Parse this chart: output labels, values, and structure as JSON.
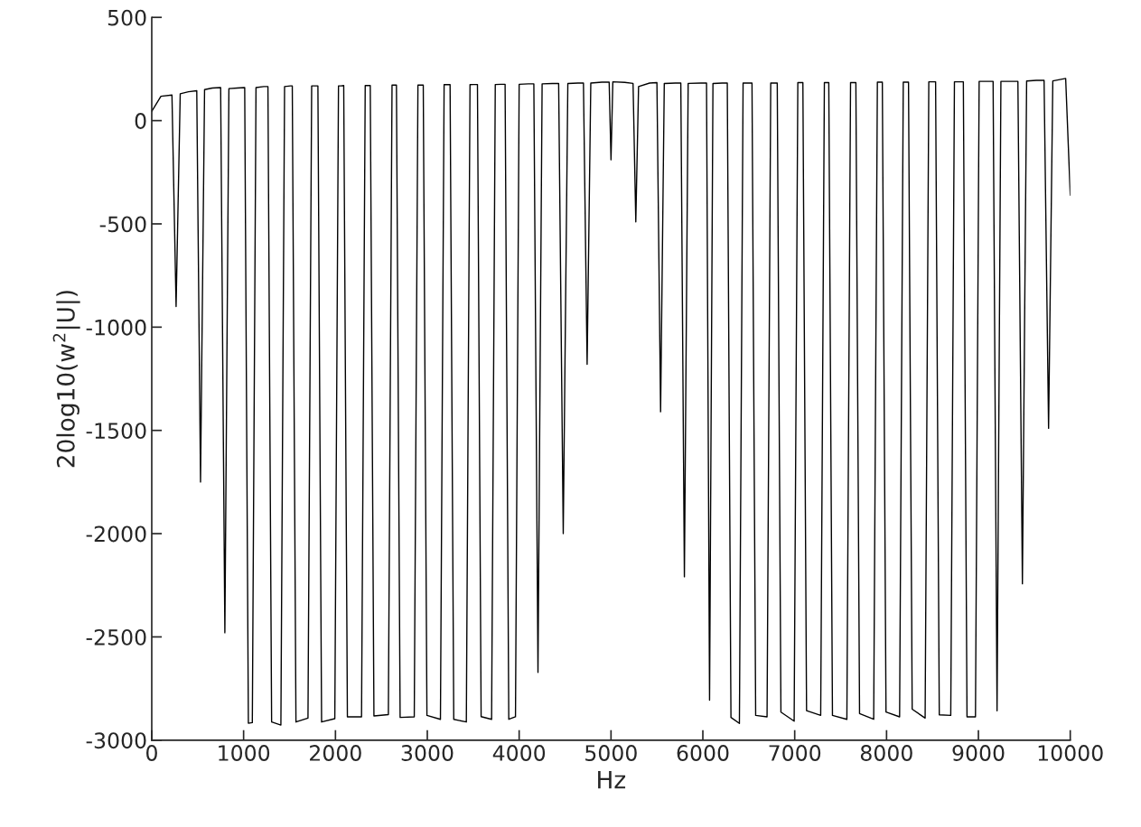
{
  "chart_data": {
    "type": "line",
    "xlabel": "Hz",
    "ylabel": "20log10(w$^{2}$|U|)",
    "xlim": [
      0,
      10000
    ],
    "xticks": [
      0,
      1000,
      2000,
      3000,
      4000,
      5000,
      6000,
      7000,
      8000,
      9000,
      10000
    ],
    "ylim": [
      -3000,
      500
    ],
    "yticks": [
      {
        "value": -3000,
        "label": "-3000"
      },
      {
        "value": -2500,
        "label": "-2500"
      },
      {
        "value": -2000,
        "label": "-2000"
      },
      {
        "value": -1500,
        "label": "-1500"
      },
      {
        "value": -1000,
        "label": "-1000"
      },
      {
        "value": -500,
        "label": "-500"
      },
      0,
      500
    ],
    "grid": false,
    "marker": "none",
    "line_style": "solid",
    "series": [
      {
        "color": "#000000",
        "x": [
          0,
          100,
          220,
          265,
          310,
          400,
          490,
          531,
          575,
          660,
          750,
          796,
          840,
          930,
          1012,
          1052,
          1095,
          1135,
          1220,
          1265,
          1305,
          1406,
          1446,
          1510,
          1530,
          1570,
          1701,
          1741,
          1775,
          1809,
          1849,
          1993,
          2033,
          2060,
          2090,
          2130,
          2284,
          2324,
          2350,
          2379,
          2419,
          2576,
          2616,
          2640,
          2664,
          2704,
          2858,
          2898,
          2930,
          2956,
          2996,
          3143,
          3183,
          3220,
          3248,
          3288,
          3425,
          3465,
          3500,
          3546,
          3586,
          3700,
          3740,
          3800,
          3847,
          3887,
          3960,
          4000,
          4100,
          4160,
          4205,
          4250,
          4360,
          4430,
          4480,
          4530,
          4640,
          4700,
          4740,
          4780,
          4900,
          4980,
          5000,
          5020,
          5150,
          5240,
          5270,
          5300,
          5420,
          5500,
          5540,
          5580,
          5700,
          5760,
          5799,
          5840,
          5980,
          6040,
          6073,
          6110,
          6210,
          6266,
          6306,
          6398,
          6438,
          6500,
          6535,
          6575,
          6699,
          6739,
          6790,
          6810,
          6850,
          6994,
          7034,
          7089,
          7129,
          7283,
          7323,
          7371,
          7411,
          7568,
          7608,
          7666,
          7706,
          7860,
          7900,
          7954,
          7994,
          8142,
          8182,
          8239,
          8279,
          8420,
          8460,
          8534,
          8574,
          8699,
          8739,
          8836,
          8876,
          8968,
          9008,
          9100,
          9160,
          9203,
          9245,
          9350,
          9430,
          9479,
          9525,
          9630,
          9715,
          9764,
          9810,
          9950,
          10000
        ],
        "values": [
          45,
          118,
          124,
          -900,
          130,
          140,
          145,
          -1750,
          150,
          158,
          160,
          -2480,
          155,
          158,
          160,
          -2918,
          -2915,
          160,
          165,
          165,
          -2912,
          -2927,
          165,
          168,
          168,
          -2912,
          -2893,
          168,
          168,
          168,
          -2912,
          -2896,
          168,
          168,
          170,
          -2887,
          -2887,
          170,
          170,
          170,
          -2883,
          -2876,
          172,
          172,
          172,
          -2890,
          -2887,
          172,
          172,
          172,
          -2880,
          -2899,
          174,
          174,
          174,
          -2899,
          -2912,
          174,
          175,
          175,
          -2886,
          -2899,
          175,
          176,
          176,
          -2899,
          -2887,
          176,
          178,
          178,
          -2672,
          178,
          180,
          180,
          -2000,
          180,
          182,
          182,
          -1180,
          182,
          186,
          186,
          -190,
          188,
          185,
          180,
          -490,
          165,
          182,
          184,
          -1410,
          180,
          182,
          182,
          -2209,
          180,
          182,
          182,
          -2806,
          180,
          182,
          182,
          -2890,
          -2919,
          182,
          182,
          182,
          -2880,
          -2887,
          182,
          182,
          182,
          -2864,
          -2908,
          184,
          184,
          -2857,
          -2880,
          184,
          184,
          -2880,
          -2899,
          184,
          184,
          -2871,
          -2899,
          186,
          186,
          -2864,
          -2887,
          186,
          186,
          -2850,
          -2893,
          188,
          188,
          -2877,
          -2880,
          188,
          188,
          -2887,
          -2887,
          190,
          190,
          190,
          -2858,
          190,
          190,
          190,
          -2243,
          192,
          195,
          195,
          -1490,
          192,
          204,
          -360
        ]
      }
    ]
  }
}
